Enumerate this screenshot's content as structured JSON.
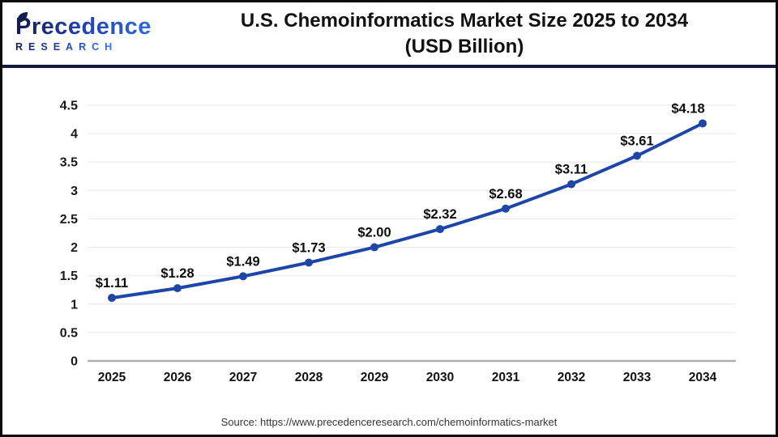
{
  "header": {
    "logo": {
      "brand": "Precedence",
      "sub": "RESEARCH"
    },
    "title_line1": "U.S. Chemoinformatics Market Size 2025 to 2034",
    "title_line2": "(USD Billion)"
  },
  "footer": {
    "source": "Source: https://www.precedenceresearch.com/chemoinformatics-market"
  },
  "colors": {
    "line": "#1e46a9",
    "marker": "#1e46a9",
    "grid": "#ececec",
    "axis": "#b0b0b0",
    "divider_navy": "#141a3e",
    "logo_navy": "#141b4d",
    "logo_blue": "#2e6be5",
    "tick_text": "#1a1a1a"
  },
  "chart_data": {
    "type": "line",
    "title": "U.S. Chemoinformatics Market Size 2025 to 2034 (USD Billion)",
    "xlabel": "",
    "ylabel": "",
    "categories": [
      "2025",
      "2026",
      "2027",
      "2028",
      "2029",
      "2030",
      "2031",
      "2032",
      "2033",
      "2034"
    ],
    "values": [
      1.11,
      1.28,
      1.49,
      1.73,
      2.0,
      2.32,
      2.68,
      3.11,
      3.61,
      4.18
    ],
    "point_labels": [
      "$1.11",
      "$1.28",
      "$1.49",
      "$1.73",
      "$2.00",
      "$2.32",
      "$2.68",
      "$3.11",
      "$3.61",
      "$4.18"
    ],
    "ylim": [
      0,
      4.5
    ],
    "yticks": [
      0,
      0.5,
      1,
      1.5,
      2,
      2.5,
      3,
      3.5,
      4,
      4.5
    ],
    "ytick_labels": [
      "0",
      "0.5",
      "1",
      "1.5",
      "2",
      "2.5",
      "3",
      "3.5",
      "4",
      "4.5"
    ],
    "grid": true,
    "legend": "none",
    "series_name": "U.S. chemoinformatics market size (USD Billion)"
  }
}
